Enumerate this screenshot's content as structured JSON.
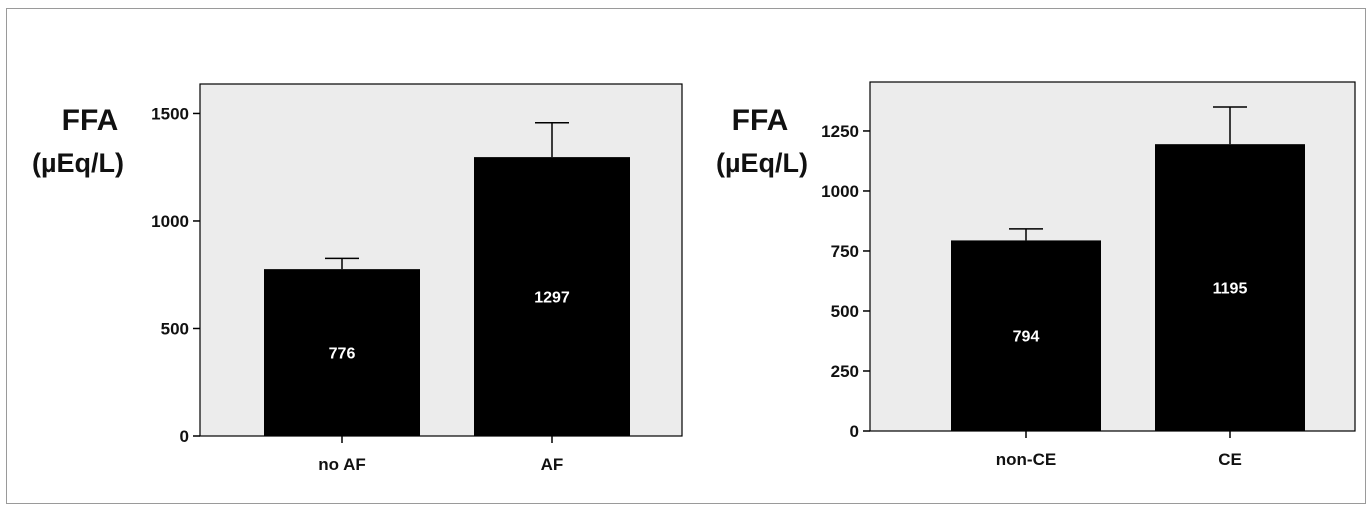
{
  "chart_data": [
    {
      "type": "bar",
      "ylabel_line1": "FFA",
      "ylabel_line2": "(µEq/L)",
      "categories": [
        "no AF",
        "AF"
      ],
      "values": [
        776,
        1297
      ],
      "errors": [
        826,
        1457
      ],
      "data_labels": [
        "776",
        "1297"
      ],
      "ylim": [
        0,
        1500
      ],
      "yticks": [
        0,
        500,
        1000,
        1500
      ],
      "grid": false,
      "bar_color": "#000000",
      "background": "#ececec"
    },
    {
      "type": "bar",
      "ylabel_line1": "FFA",
      "ylabel_line2": "(µEq/L)",
      "categories": [
        "non-CE",
        "CE"
      ],
      "values": [
        794,
        1195
      ],
      "errors": [
        842,
        1350
      ],
      "data_labels": [
        "794",
        "1195"
      ],
      "ylim": [
        0,
        1250
      ],
      "yticks": [
        0,
        250,
        500,
        750,
        1000,
        1250
      ],
      "grid": false,
      "bar_color": "#000000",
      "background": "#ececec"
    }
  ]
}
